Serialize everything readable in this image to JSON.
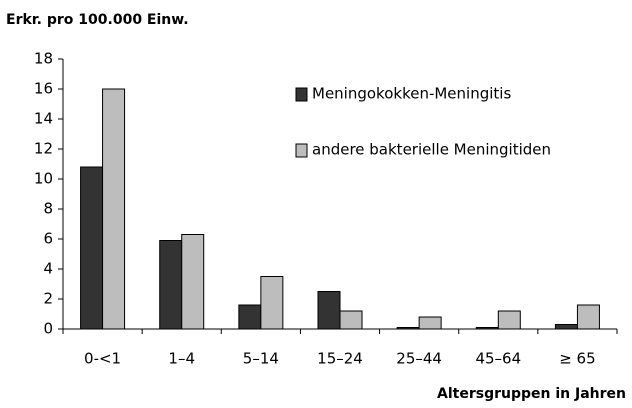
{
  "chart_data": {
    "type": "bar",
    "title": "Erkr. pro 100.000 Einw.",
    "x_label": "Altersgruppen in Jahren",
    "categories": [
      "0-<1",
      "1–4",
      "5–14",
      "15–24",
      "25–44",
      "45–64",
      "≥ 65"
    ],
    "series": [
      {
        "name": "Meningokokken-Meningitis",
        "color": "#333333",
        "values": [
          10.8,
          5.9,
          1.6,
          2.5,
          0.1,
          0.1,
          0.3
        ]
      },
      {
        "name": "andere bakterielle Meningitiden",
        "color": "#bdbdbd",
        "values": [
          16,
          6.3,
          3.5,
          1.2,
          0.8,
          1.2,
          1.6
        ]
      }
    ],
    "ylim": [
      0,
      18
    ],
    "yticks": [
      0,
      2,
      4,
      6,
      8,
      10,
      12,
      14,
      16,
      18
    ],
    "grid": false,
    "legend": "upper right"
  }
}
